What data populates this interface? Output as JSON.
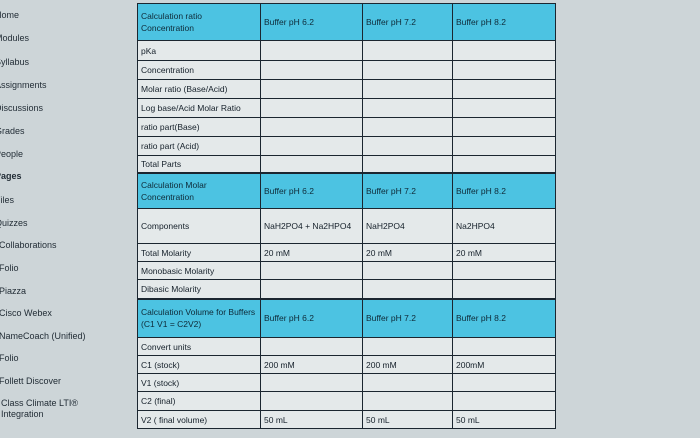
{
  "sidebar": {
    "items": [
      {
        "label": "Home"
      },
      {
        "label": "Modules"
      },
      {
        "label": "Syllabus"
      },
      {
        "label": "Assignments"
      },
      {
        "label": "Discussions"
      },
      {
        "label": "Grades"
      },
      {
        "label": "People"
      },
      {
        "label": "Pages"
      },
      {
        "label": "Files"
      },
      {
        "label": "Quizzes"
      },
      {
        "label": "Collaborations"
      },
      {
        "label": "Folio"
      },
      {
        "label": "Piazza"
      },
      {
        "label": "Cisco Webex"
      },
      {
        "label": "NameCoach (Unified)"
      },
      {
        "label": "Folio"
      },
      {
        "label": "Follett Discover"
      },
      {
        "label": "Class Climate LTI® Integration"
      }
    ]
  },
  "table": {
    "sections": [
      {
        "header": [
          "Calculation ratio Concentration",
          "Buffer pH 6.2",
          "Buffer pH 7.2",
          "Buffer pH 8.2"
        ],
        "rows": [
          [
            "pKa",
            "",
            "",
            ""
          ],
          [
            "Concentration",
            "",
            "",
            ""
          ],
          [
            "Molar ratio (Base/Acid)",
            "",
            "",
            ""
          ],
          [
            "Log base/Acid Molar Ratio",
            "",
            "",
            ""
          ],
          [
            "ratio part(Base)",
            "",
            "",
            ""
          ],
          [
            "ratio part (Acid)",
            "",
            "",
            ""
          ],
          [
            "Total Parts",
            "",
            "",
            ""
          ]
        ]
      },
      {
        "header": [
          "Calculation Molar Concentration",
          "Buffer pH 6.2",
          "Buffer pH 7.2",
          "Buffer pH 8.2"
        ],
        "rows": [
          [
            "Components",
            "NaH2PO4 + Na2HPO4",
            "NaH2PO4",
            "Na2HPO4"
          ],
          [
            "Total Molarity",
            "20 mM",
            "20 mM",
            "20 mM"
          ],
          [
            "Monobasic Molarity",
            "",
            "",
            ""
          ],
          [
            "Dibasic Molarity",
            "",
            "",
            ""
          ]
        ]
      },
      {
        "header": [
          "Calculation Volume for Buffers (C1 V1 = C2V2)",
          "Buffer pH 6.2",
          "Buffer pH 7.2",
          "Buffer pH 8.2"
        ],
        "rows": [
          [
            "Convert units",
            "",
            "",
            ""
          ],
          [
            "C1 (stock)",
            "200 mM",
            "200 mM",
            "200mM"
          ],
          [
            "V1 (stock)",
            "",
            "",
            ""
          ],
          [
            "C2 (final)",
            "",
            "",
            ""
          ],
          [
            "V2 ( final volume)",
            "50 mL",
            "50 mL",
            "50 mL"
          ]
        ]
      }
    ]
  },
  "colors": {
    "header": "#4cc3e2",
    "cell": "#e4e9ea",
    "background": "#cdd5d8"
  }
}
